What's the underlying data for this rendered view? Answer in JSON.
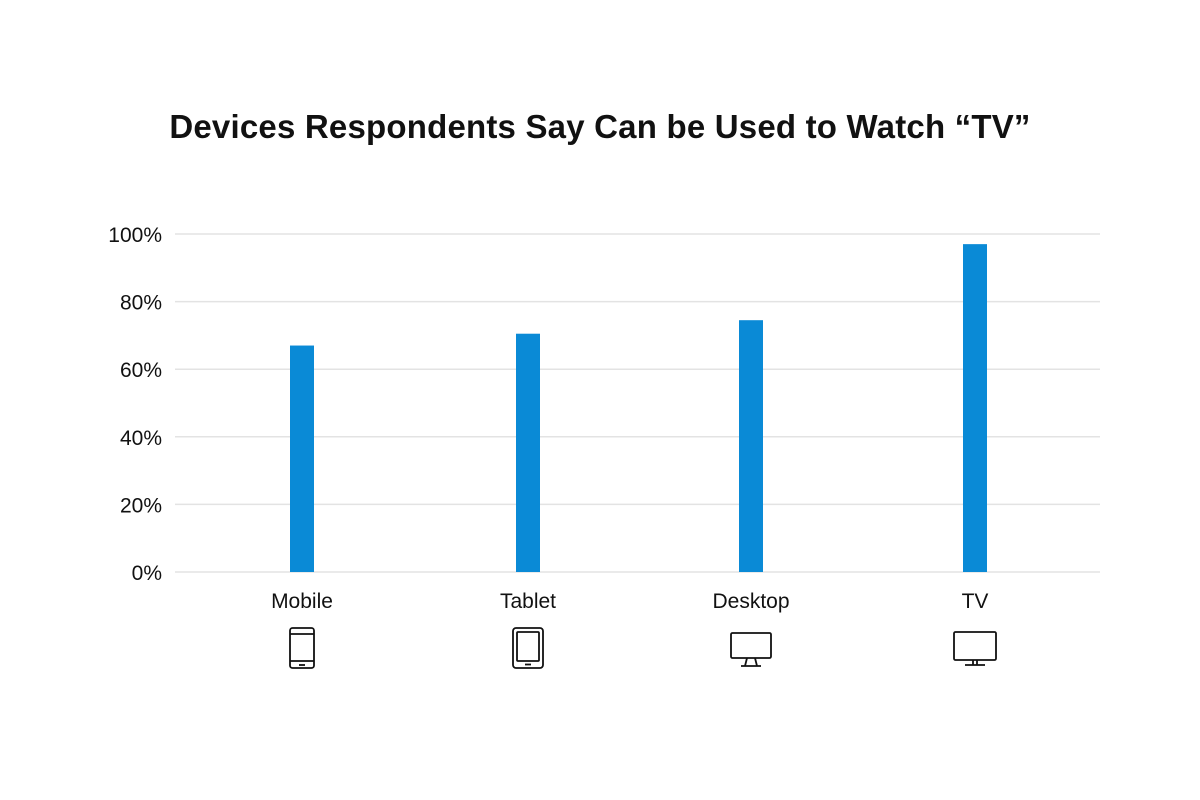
{
  "chart_data": {
    "type": "bar",
    "title": "Devices Respondents Say Can be Used to Watch “TV”",
    "xlabel": "",
    "ylabel": "",
    "categories": [
      "Mobile",
      "Tablet",
      "Desktop",
      "TV"
    ],
    "values": [
      67,
      70.5,
      74.5,
      97
    ],
    "ylim": [
      0,
      100
    ],
    "yticks": [
      0,
      20,
      40,
      60,
      80,
      100
    ],
    "ytick_labels": [
      "0%",
      "20%",
      "40%",
      "60%",
      "80%",
      "100%"
    ],
    "grid": true,
    "legend": "none",
    "bar_color": "#0a8ad6",
    "category_icons": [
      "mobile-phone-icon",
      "tablet-icon",
      "desktop-monitor-icon",
      "tv-icon"
    ]
  }
}
